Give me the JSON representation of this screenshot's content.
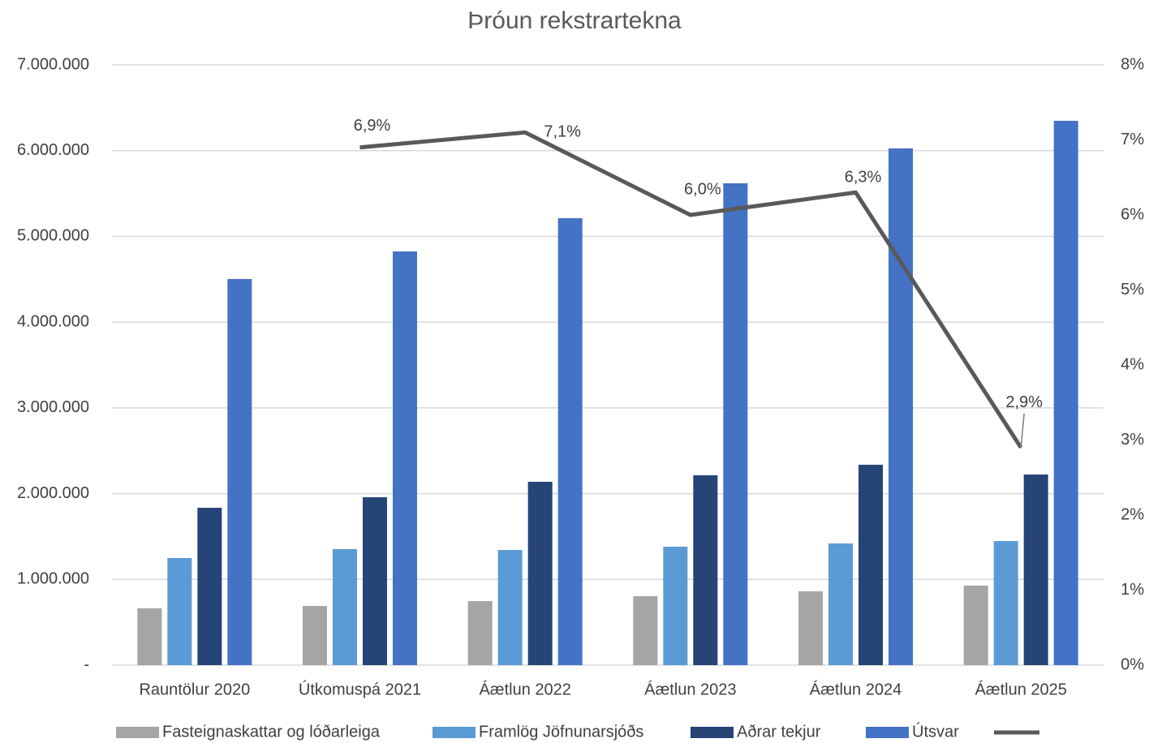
{
  "chart_data": {
    "type": "bar",
    "title": "Þróun rekstrartekna",
    "categories": [
      "Rauntölur 2020",
      "Útkomuspá  2021",
      "Áætlun 2022",
      "Áætlun 2023",
      "Áætlun 2024",
      "Áætlun 2025"
    ],
    "series": [
      {
        "name": "Fasteignaskattar og lóðarleiga",
        "color": "#a5a5a5",
        "values": [
          662000,
          690000,
          747000,
          804000,
          861000,
          927000
        ]
      },
      {
        "name": "Framlög Jöfnunarsjóðs",
        "color": "#5b9bd5",
        "values": [
          1249000,
          1353000,
          1343000,
          1381000,
          1419000,
          1447000
        ]
      },
      {
        "name": "Aðrar tekjur",
        "color": "#264478",
        "values": [
          1835000,
          1958000,
          2138000,
          2214000,
          2337000,
          2223000
        ]
      },
      {
        "name": "Útsvar",
        "color": "#4472c4",
        "values": [
          4503000,
          4824000,
          5212000,
          5619000,
          6026000,
          6348000
        ]
      },
      {
        "type": "line",
        "axis": "y2",
        "color": "#595959",
        "values": [
          null,
          6.9,
          7.1,
          6.0,
          6.3,
          2.9
        ],
        "value_labels": [
          null,
          "6,9%",
          "7,1%",
          "6,0%",
          "6,3%",
          "2,9%"
        ]
      }
    ],
    "ylim": [
      0,
      7000000
    ],
    "yticks": [
      {
        "value": 0,
        "label": "-"
      },
      {
        "value": 1000000,
        "label": "1.000.000"
      },
      {
        "value": 2000000,
        "label": "2.000.000"
      },
      {
        "value": 3000000,
        "label": "3.000.000"
      },
      {
        "value": 4000000,
        "label": "4.000.000"
      },
      {
        "value": 5000000,
        "label": "5.000.000"
      },
      {
        "value": 6000000,
        "label": "6.000.000"
      },
      {
        "value": 7000000,
        "label": "7.000.000"
      }
    ],
    "y2lim": [
      0,
      8
    ],
    "y2ticks": [
      {
        "value": 0,
        "label": "0%"
      },
      {
        "value": 1,
        "label": "1%"
      },
      {
        "value": 2,
        "label": "2%"
      },
      {
        "value": 3,
        "label": "3%"
      },
      {
        "value": 4,
        "label": "4%"
      },
      {
        "value": 5,
        "label": "5%"
      },
      {
        "value": 6,
        "label": "6%"
      },
      {
        "value": 7,
        "label": "7%"
      },
      {
        "value": 8,
        "label": "8%"
      }
    ],
    "grid": true,
    "legend": "bottom"
  }
}
